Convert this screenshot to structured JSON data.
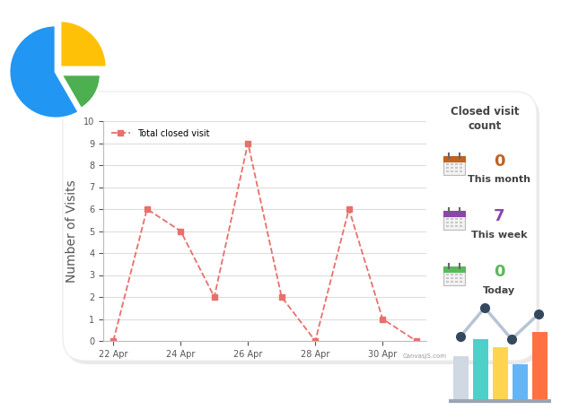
{
  "chart_data": {
    "type": "line",
    "y_label": "Number of Visits",
    "categories": [
      "22 Apr",
      null,
      "24 Apr",
      null,
      "26 Apr",
      null,
      "28 Apr",
      null,
      "30 Apr",
      null
    ],
    "series": [
      {
        "name": "Total closed visit",
        "color": "#e8706b",
        "values": [
          0,
          6,
          5,
          2,
          9,
          2,
          0,
          6,
          1,
          0
        ],
        "marker": "square",
        "line_style": "dashed"
      }
    ],
    "ylim": [
      0,
      10
    ],
    "yticks": [
      0,
      1,
      2,
      3,
      4,
      5,
      6,
      7,
      8,
      9,
      10
    ],
    "grid": true,
    "legend": "upper left"
  },
  "panel": {
    "title": "Closed visit count",
    "items": [
      {
        "value": 0,
        "label": "This month",
        "color": "#c1621e"
      },
      {
        "value": 7,
        "label": "This week",
        "color": "#8e44ad"
      },
      {
        "value": 0,
        "label": "Today",
        "color": "#5cb85c"
      }
    ]
  },
  "watermark": "CanvasJS.com"
}
